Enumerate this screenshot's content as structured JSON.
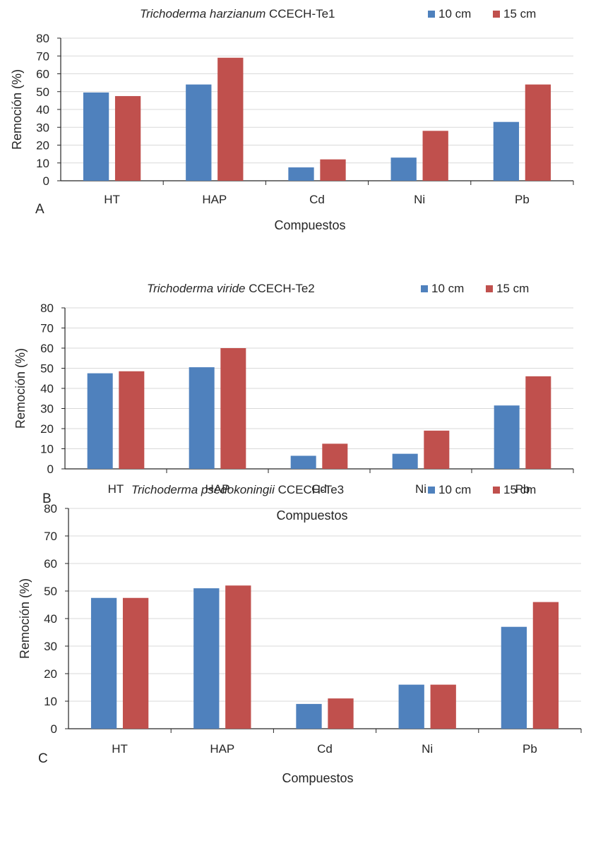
{
  "colors": {
    "series_10": "#4f81bd",
    "series_15": "#c0504d",
    "grid": "#d9d9d9",
    "axis": "#262626"
  },
  "chart_data": [
    {
      "type": "bar",
      "panel": "A",
      "title_species": "Trichoderma  harzianum",
      "title_strain": "CCECH-Te1",
      "categories": [
        "HT",
        "HAP",
        "Cd",
        "Ni",
        "Pb"
      ],
      "series": [
        {
          "name": "10 cm",
          "values": [
            49.5,
            54,
            7.5,
            13,
            33
          ]
        },
        {
          "name": "15 cm",
          "values": [
            47.5,
            69,
            12,
            28,
            54
          ]
        }
      ],
      "xlabel": "Compuestos",
      "ylabel": "Remoción (%)",
      "ylim": [
        0,
        80
      ],
      "yticks": [
        0,
        10,
        20,
        30,
        40,
        50,
        60,
        70,
        80
      ],
      "grid": true,
      "legend": "top-right"
    },
    {
      "type": "bar",
      "panel": "B",
      "title_species": "Trichoderma  viride",
      "title_strain": "CCECH-Te2",
      "categories": [
        "HT",
        "HAP",
        "Cd",
        "Ni",
        "Pb"
      ],
      "series": [
        {
          "name": "10 cm",
          "values": [
            47.5,
            50.5,
            6.5,
            7.5,
            31.5
          ]
        },
        {
          "name": "15 cm",
          "values": [
            48.5,
            60,
            12.5,
            19,
            46
          ]
        }
      ],
      "xlabel": "Compuestos",
      "ylabel": "Remoción (%)",
      "ylim": [
        0,
        80
      ],
      "yticks": [
        0,
        10,
        20,
        30,
        40,
        50,
        60,
        70,
        80
      ],
      "grid": true,
      "legend": "top-right"
    },
    {
      "type": "bar",
      "panel": "C",
      "title_species": "Trichoderma   psedokoningii",
      "title_strain": "CCECH-Te3",
      "categories": [
        "HT",
        "HAP",
        "Cd",
        "Ni",
        "Pb"
      ],
      "series": [
        {
          "name": "10 cm",
          "values": [
            47.5,
            51,
            9,
            16,
            37
          ]
        },
        {
          "name": "15 cm",
          "values": [
            47.5,
            52,
            11,
            16,
            46
          ]
        }
      ],
      "xlabel": "Compuestos",
      "ylabel": "Remoción (%)",
      "ylim": [
        0,
        80
      ],
      "yticks": [
        0,
        10,
        20,
        30,
        40,
        50,
        60,
        70,
        80
      ],
      "grid": true,
      "legend": "top-right"
    }
  ]
}
